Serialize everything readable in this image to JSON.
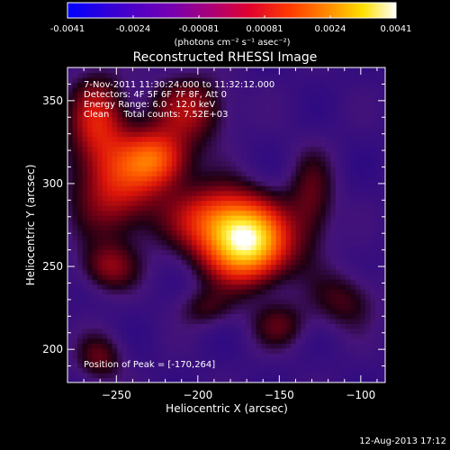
{
  "colorbar": {
    "ticks": [
      "-0.0041",
      "-0.0024",
      "-0.00081",
      "0.00081",
      "0.0024",
      "0.0041"
    ],
    "units": "(photons cm⁻² s⁻¹ asec⁻²)",
    "colors": [
      "#0000ff",
      "#5000c0",
      "#9000a0",
      "#d00050",
      "#ff2000",
      "#ff8000",
      "#ffd000",
      "#ffffff"
    ]
  },
  "chart_data": {
    "type": "heatmap",
    "title": "Reconstructed RHESSI Image",
    "xlabel": "Heliocentric X (arcsec)",
    "ylabel": "Heliocentric Y (arcsec)",
    "xlim": [
      -280,
      -85
    ],
    "ylim": [
      180,
      370
    ],
    "xticks": [
      -250,
      -200,
      -150,
      -100
    ],
    "yticks": [
      200,
      250,
      300,
      350
    ],
    "xtick_labels": [
      "−250",
      "−200",
      "−150",
      "−100"
    ],
    "ytick_labels": [
      "200",
      "250",
      "300",
      "350"
    ],
    "peak": {
      "x": -170,
      "y": 264
    },
    "annotations": [
      "7-Nov-2011 11:30:24.000 to 11:32:12.000",
      "Detectors: 4F 5F 6F 7F 8F, Att 0",
      "Energy Range: 6.0 - 12.0 keV",
      "Clean     Total counts: 7.52E+03"
    ],
    "peak_label": "Position of Peak = [-170,264]",
    "blobs": [
      {
        "x": -170,
        "y": 264,
        "amp": 1.0,
        "sx": 18,
        "sy": 16
      },
      {
        "x": -190,
        "y": 280,
        "amp": 0.45,
        "sx": 20,
        "sy": 14
      },
      {
        "x": -225,
        "y": 315,
        "amp": 0.55,
        "sx": 14,
        "sy": 12
      },
      {
        "x": -250,
        "y": 300,
        "amp": 0.45,
        "sx": 18,
        "sy": 22
      },
      {
        "x": -262,
        "y": 340,
        "amp": 0.4,
        "sx": 12,
        "sy": 18
      },
      {
        "x": -205,
        "y": 345,
        "amp": 0.35,
        "sx": 16,
        "sy": 14
      },
      {
        "x": -255,
        "y": 250,
        "amp": 0.3,
        "sx": 12,
        "sy": 10
      },
      {
        "x": -130,
        "y": 290,
        "amp": 0.25,
        "sx": 10,
        "sy": 20
      },
      {
        "x": -110,
        "y": 230,
        "amp": 0.22,
        "sx": 14,
        "sy": 12
      },
      {
        "x": -150,
        "y": 215,
        "amp": 0.22,
        "sx": 12,
        "sy": 10
      },
      {
        "x": -260,
        "y": 195,
        "amp": 0.25,
        "sx": 10,
        "sy": 10
      },
      {
        "x": -195,
        "y": 225,
        "amp": 0.18,
        "sx": 12,
        "sy": 8
      }
    ]
  },
  "footer": {
    "date": "12-Aug-2013 17:12"
  }
}
